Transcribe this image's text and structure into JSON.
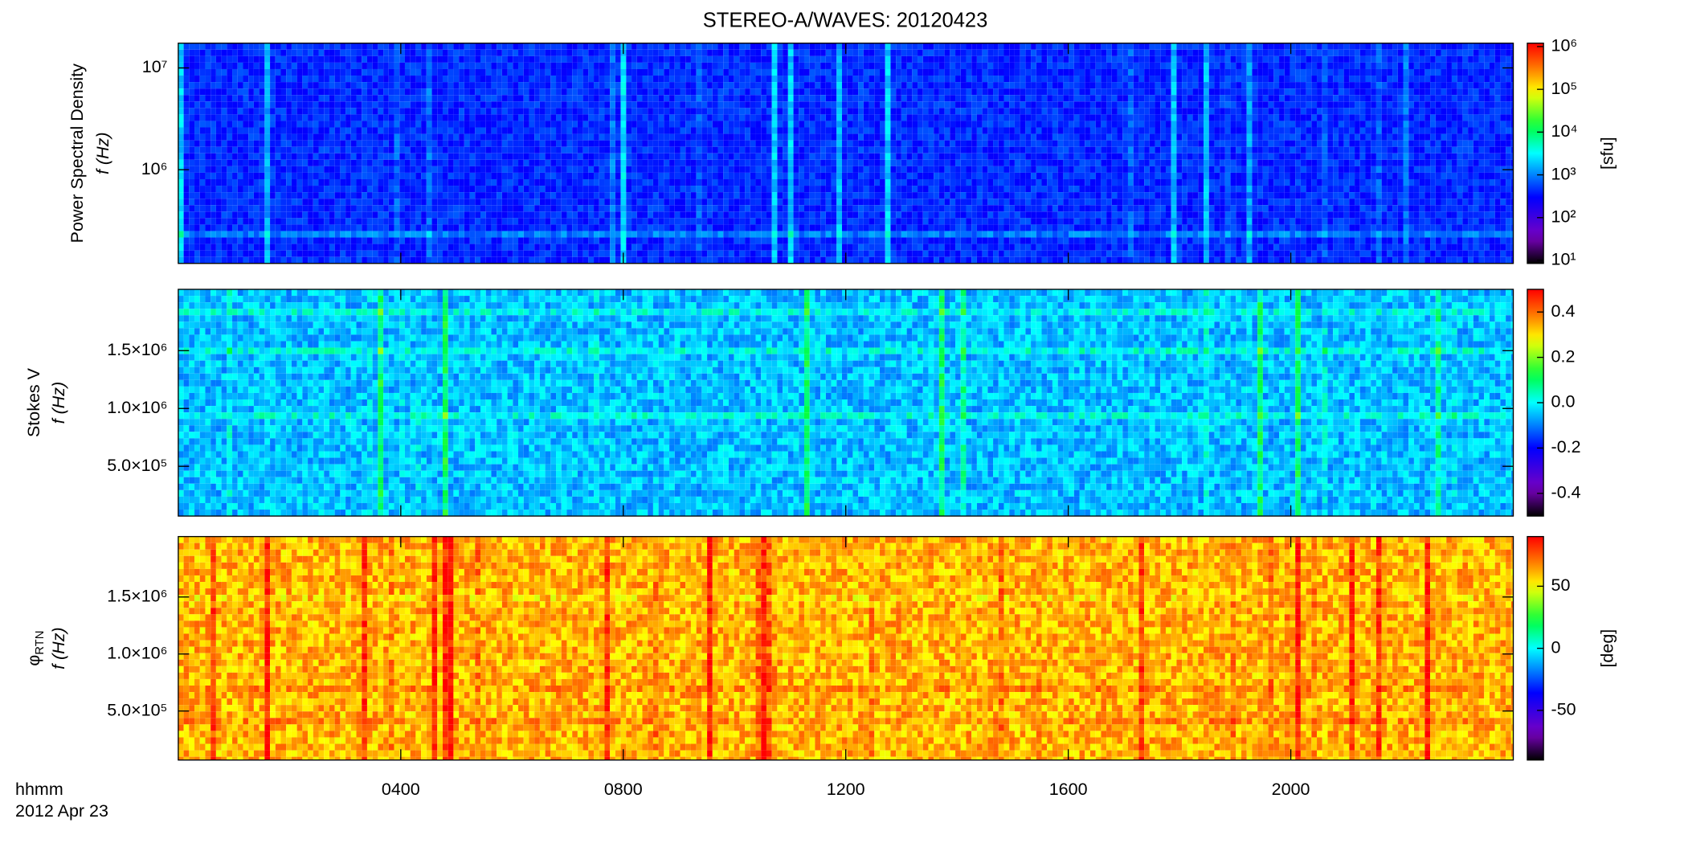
{
  "chart_data": [
    {
      "type": "spectrogram",
      "title": "STEREO-A/WAVES: 20120423",
      "ylabel": "Power Spectral Density",
      "ylabel2": "f (Hz)",
      "ylog": true,
      "ylim": [
        120000,
        17500000
      ],
      "yticks": [
        {
          "value": 1000000,
          "label": "10⁶"
        },
        {
          "value": 10000000,
          "label": "10⁷"
        }
      ],
      "colorbar": {
        "label": "[sfu]",
        "log": true,
        "lim": [
          8.5,
          1200000
        ],
        "ticks": [
          {
            "value": 10,
            "label": "10¹"
          },
          {
            "value": 100,
            "label": "10²"
          },
          {
            "value": 1000,
            "label": "10³"
          },
          {
            "value": 10000,
            "label": "10⁴"
          },
          {
            "value": 100000,
            "label": "10⁵"
          },
          {
            "value": 1000000,
            "label": "10⁶"
          }
        ]
      }
    },
    {
      "type": "spectrogram",
      "ylabel": "Stokes V",
      "ylabel2": "f (Hz)",
      "ylog": false,
      "ylim": [
        70000,
        2030000
      ],
      "yticks": [
        {
          "value": 500000,
          "label": "5.0×10⁵"
        },
        {
          "value": 1000000,
          "label": "1.0×10⁶"
        },
        {
          "value": 1500000,
          "label": "1.5×10⁶"
        }
      ],
      "colorbar": {
        "log": false,
        "lim": [
          -0.5,
          0.5
        ],
        "ticks": [
          -0.4,
          -0.2,
          {
            "value": 0,
            "label": "0.0"
          },
          0.2,
          0.4
        ]
      }
    },
    {
      "type": "spectrogram",
      "ylabel": "φ",
      "ylabel_sub": "RTN",
      "ylabel2": "f (Hz)",
      "ylog": false,
      "ylim": [
        70000,
        2030000
      ],
      "yticks": [
        {
          "value": 500000,
          "label": "5.0×10⁵"
        },
        {
          "value": 1000000,
          "label": "1.0×10⁶"
        },
        {
          "value": 1500000,
          "label": "1.5×10⁶"
        }
      ],
      "colorbar": {
        "label": "[deg]",
        "log": false,
        "lim": [
          -90,
          90
        ],
        "ticks": [
          -50,
          0,
          50
        ]
      },
      "xlabel": "hhmm",
      "xlabel2": "2012 Apr 23",
      "xlim": [
        0,
        24
      ],
      "xticks": [
        {
          "value": 4,
          "label": "0400"
        },
        {
          "value": 8,
          "label": "0800"
        },
        {
          "value": 12,
          "label": "1200"
        },
        {
          "value": 16,
          "label": "1600"
        },
        {
          "value": 20,
          "label": "2000"
        }
      ]
    }
  ]
}
